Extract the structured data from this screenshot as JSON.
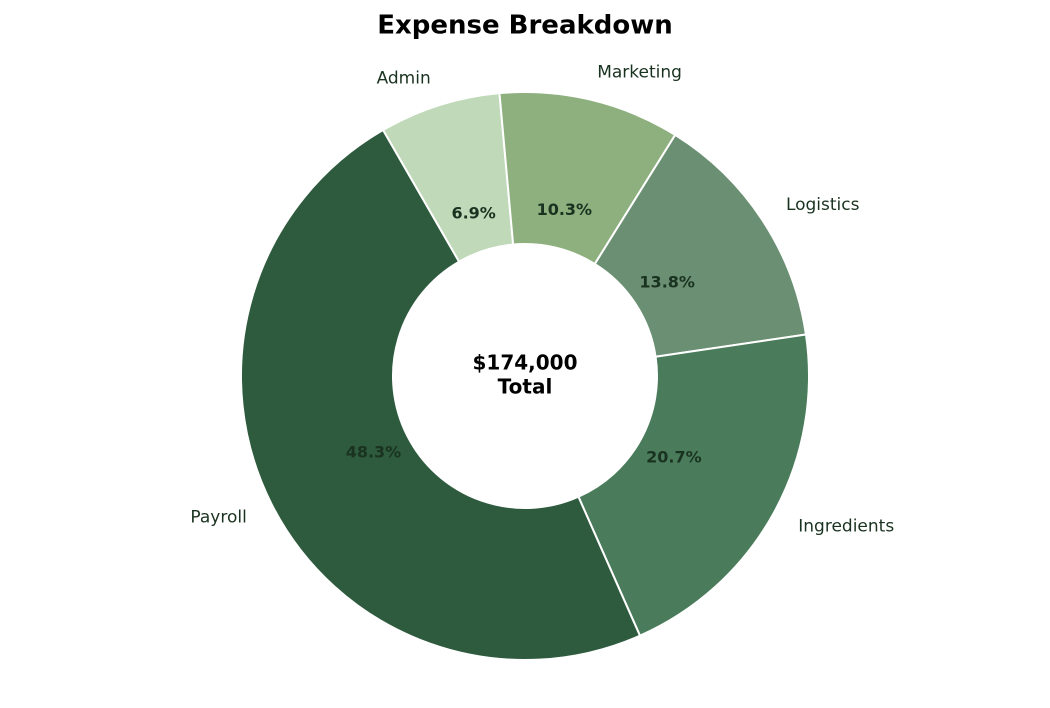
{
  "chart_data": {
    "type": "donut",
    "title": "Expense Breakdown",
    "categories": [
      "Payroll",
      "Ingredients",
      "Logistics",
      "Marketing",
      "Admin"
    ],
    "values": [
      48.3,
      20.7,
      13.8,
      10.3,
      6.9
    ],
    "value_labels": [
      "48.3%",
      "20.7%",
      "13.8%",
      "10.3%",
      "6.9%"
    ],
    "colors": [
      "#2e5b3e",
      "#4a7c5b",
      "#6b8f72",
      "#8db07e",
      "#c0d9b9"
    ],
    "center_text": [
      "$174,000",
      "Total"
    ]
  }
}
